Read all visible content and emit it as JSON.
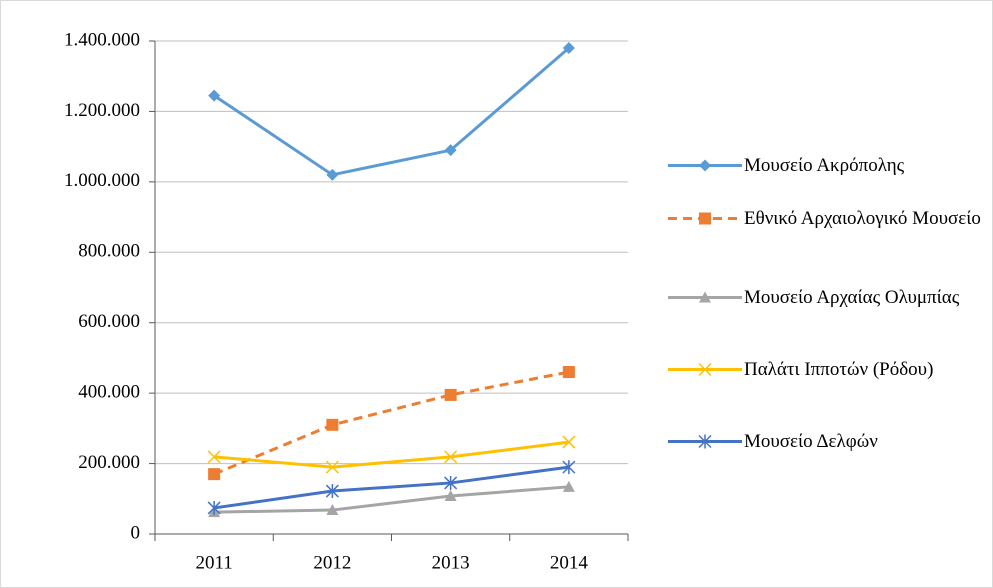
{
  "chart_data": {
    "type": "line",
    "categories": [
      "2011",
      "2012",
      "2013",
      "2014"
    ],
    "ylim": [
      0,
      1400000
    ],
    "yticks": [
      0,
      {
        "value": 200000,
        "label": "200.000"
      },
      {
        "value": 400000,
        "label": "400.000"
      },
      {
        "value": 600000,
        "label": "600.000"
      },
      {
        "value": 800000,
        "label": "800.000"
      },
      {
        "value": 1000000,
        "label": "1.000.000"
      },
      {
        "value": 1200000,
        "label": "1.200.000"
      },
      {
        "value": 1400000,
        "label": "1.400.000"
      }
    ],
    "grid": true,
    "legend": "right",
    "series": [
      {
        "name": "Μουσείο Ακρόπολης",
        "color": "#5b9bd5",
        "marker": "diamond",
        "dash": false,
        "values": [
          1245000,
          1020000,
          1090000,
          1380000
        ]
      },
      {
        "name": "Εθνικό Αρχαιολογικό Μουσείο",
        "color": "#ed7d31",
        "marker": "square",
        "dash": true,
        "values": [
          170000,
          310000,
          395000,
          460000
        ]
      },
      {
        "name": "Μουσείο Αρχαίας Ολυμπίας",
        "color": "#a5a5a5",
        "marker": "triangle",
        "dash": false,
        "values": [
          62000,
          68000,
          108000,
          134000
        ]
      },
      {
        "name": "Παλάτι Ιπποτών (Ρόδου)",
        "color": "#ffc000",
        "marker": "x",
        "dash": false,
        "values": [
          219000,
          190000,
          219000,
          261000
        ]
      },
      {
        "name": "Μουσείο Δελφών",
        "color": "#4472c4",
        "marker": "star",
        "dash": false,
        "values": [
          74000,
          122000,
          145000,
          190000
        ]
      }
    ]
  }
}
